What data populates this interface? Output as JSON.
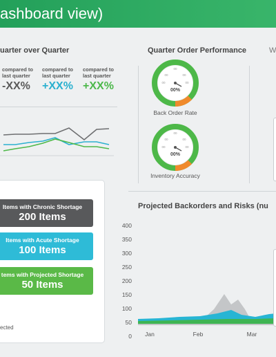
{
  "header": {
    "title": "ashboard view)"
  },
  "qoq": {
    "title": "uarter over Quarter",
    "compare_label": "compared to last quarter",
    "values": [
      "-XX%",
      "+XX%",
      "+XX%"
    ],
    "value_colors": [
      "#5a5a5a",
      "#2bb0cf",
      "#4cb84a"
    ]
  },
  "performance": {
    "title": "Quarter Order Performance",
    "gauges": [
      {
        "center": "00%",
        "tick": "00",
        "label": "Back Order Rate"
      },
      {
        "center": "00%",
        "tick": "00",
        "label": "Inventory Accuracy"
      }
    ]
  },
  "right_cut": {
    "title": "W"
  },
  "shortage": {
    "items": [
      {
        "label": "Items with Chronic Shortage",
        "value": "200 Items",
        "color": "#58595b"
      },
      {
        "label": "Items with Acute Shortage",
        "value": "100 Items",
        "color": "#2ebbd7"
      },
      {
        "label": "tems with Projected Shortage",
        "value": "50 Items",
        "color": "#5ab947"
      }
    ],
    "footer": "ected"
  },
  "backorders": {
    "title": "Projected Backorders and Risks (nu",
    "y_ticks": [
      "400",
      "350",
      "300",
      "250",
      "200",
      "150",
      "100",
      "50",
      "0"
    ],
    "x_ticks": [
      "Jan",
      "Feb",
      "Mar"
    ]
  },
  "colors": {
    "green": "#4db848",
    "orange": "#f08a2c",
    "gray_line": "#6d6e70",
    "cyan": "#27b5d4"
  }
}
